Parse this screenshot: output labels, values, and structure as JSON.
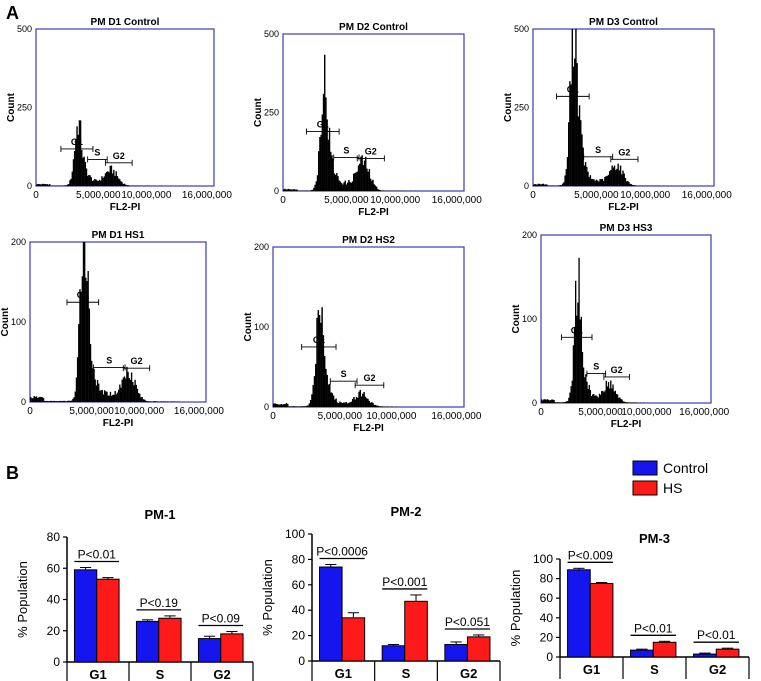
{
  "figure": {
    "panel_a_label": "A",
    "panel_b_label": "B",
    "legend": [
      {
        "label": "Control",
        "color": "#1515f0"
      },
      {
        "label": "HS",
        "color": "#ff1a1a"
      }
    ]
  },
  "chart_data": [
    {
      "type": "histogram",
      "title": "PM D1 Control",
      "xlabel": "FL2-PI",
      "ylabel": "Count",
      "xticks": [
        "0",
        "5,000,000",
        "10,000,000",
        "16,000,000"
      ],
      "yticks": [
        "0",
        "250",
        "500"
      ],
      "ylim": [
        0,
        500
      ],
      "gates": [
        "G1",
        "S",
        "G2"
      ],
      "profile": {
        "baseline": 3,
        "g1_peak": 150,
        "g2_peak": 45,
        "g1_pos": 0.23,
        "g2_pos": 0.42
      }
    },
    {
      "type": "histogram",
      "title": "PM D2 Control",
      "xlabel": "FL2-PI",
      "ylabel": "Count",
      "xticks": [
        "0",
        "5,000,000",
        "10,000,000",
        "16,000,000"
      ],
      "yticks": [
        "0",
        "250",
        "500"
      ],
      "ylim": [
        0,
        500
      ],
      "gates": [
        "G1",
        "S",
        "G2"
      ],
      "profile": {
        "baseline": 3,
        "g1_peak": 265,
        "g2_peak": 85,
        "g1_pos": 0.22,
        "g2_pos": 0.44
      }
    },
    {
      "type": "histogram",
      "title": "PM D3 Control",
      "xlabel": "FL2-PI",
      "ylabel": "Count",
      "xticks": [
        "0",
        "5,000,000",
        "10,000,000",
        "16,000,000"
      ],
      "yticks": [
        "0",
        "250",
        "500"
      ],
      "ylim": [
        0,
        500
      ],
      "gates": [
        "G1",
        "S",
        "G2"
      ],
      "profile": {
        "baseline": 3,
        "g1_peak": 420,
        "g2_peak": 60,
        "g1_pos": 0.22,
        "g2_pos": 0.46
      }
    },
    {
      "type": "histogram",
      "title": "PM D1 HS1",
      "xlabel": "FL2-PI",
      "ylabel": "Count",
      "xticks": [
        "0",
        "5,000,000",
        "10,000,000",
        "16,000,000"
      ],
      "yticks": [
        "0",
        "100",
        "200"
      ],
      "ylim": [
        0,
        200
      ],
      "gates": [
        "G1",
        "S",
        "G2"
      ],
      "profile": {
        "baseline": 3,
        "g1_peak": 185,
        "g2_peak": 35,
        "g1_pos": 0.3,
        "g2_pos": 0.56
      }
    },
    {
      "type": "histogram",
      "title": "PM D2 HS2",
      "xlabel": "FL2-PI",
      "ylabel": "Count",
      "xticks": [
        "0",
        "5,000,000",
        "10,000,000",
        "16,000,000"
      ],
      "yticks": [
        "0",
        "100",
        "200"
      ],
      "ylim": [
        0,
        200
      ],
      "gates": [
        "G1",
        "S",
        "G2"
      ],
      "profile": {
        "baseline": 2,
        "g1_peak": 105,
        "g2_peak": 15,
        "g1_pos": 0.24,
        "g2_pos": 0.46
      }
    },
    {
      "type": "histogram",
      "title": "PM D3 HS3",
      "xlabel": "FL2-PI",
      "ylabel": "Count",
      "xticks": [
        "0",
        "5,000,000",
        "10,000,000",
        "16,000,000"
      ],
      "yticks": [
        "0",
        "100",
        "200"
      ],
      "ylim": [
        0,
        200
      ],
      "gates": [
        "G1",
        "S",
        "G2"
      ],
      "profile": {
        "baseline": 2,
        "g1_peak": 110,
        "g2_peak": 20,
        "g1_pos": 0.21,
        "g2_pos": 0.4
      }
    },
    {
      "type": "bar",
      "title": "PM-1",
      "ylabel": "% Population",
      "categories": [
        "G1",
        "S",
        "G2"
      ],
      "ylim": [
        0,
        80
      ],
      "yticks": [
        "0",
        "20",
        "40",
        "60",
        "80"
      ],
      "series": [
        {
          "name": "Control",
          "values": [
            59,
            26,
            15
          ],
          "errors": [
            1.5,
            1,
            1.5
          ]
        },
        {
          "name": "HS",
          "values": [
            53,
            28,
            18
          ],
          "errors": [
            1,
            1.5,
            1.5
          ]
        }
      ],
      "annotations": [
        "P<0.01",
        "P<0.19",
        "P<0.09"
      ]
    },
    {
      "type": "bar",
      "title": "PM-2",
      "ylabel": "% Population",
      "categories": [
        "G1",
        "S",
        "G2"
      ],
      "ylim": [
        0,
        100
      ],
      "yticks": [
        "0",
        "20",
        "40",
        "60",
        "80",
        "100"
      ],
      "series": [
        {
          "name": "Control",
          "values": [
            74,
            12,
            13
          ],
          "errors": [
            2,
            1,
            2
          ]
        },
        {
          "name": "HS",
          "values": [
            34,
            47,
            19
          ],
          "errors": [
            4,
            5,
            1.5
          ]
        }
      ],
      "annotations": [
        "P<0.0006",
        "P<0.001",
        "P<0.051"
      ]
    },
    {
      "type": "bar",
      "title": "PM-3",
      "ylabel": "% Population",
      "categories": [
        "G1",
        "S",
        "G2"
      ],
      "ylim": [
        0,
        100
      ],
      "yticks": [
        "0",
        "20",
        "40",
        "60",
        "80",
        "100"
      ],
      "series": [
        {
          "name": "Control",
          "values": [
            89,
            7,
            3
          ],
          "errors": [
            1.5,
            1,
            1
          ]
        },
        {
          "name": "HS",
          "values": [
            75,
            15,
            8
          ],
          "errors": [
            1,
            1,
            1
          ]
        }
      ],
      "annotations": [
        "P<0.009",
        "P<0.01",
        "P<0.01"
      ]
    }
  ]
}
